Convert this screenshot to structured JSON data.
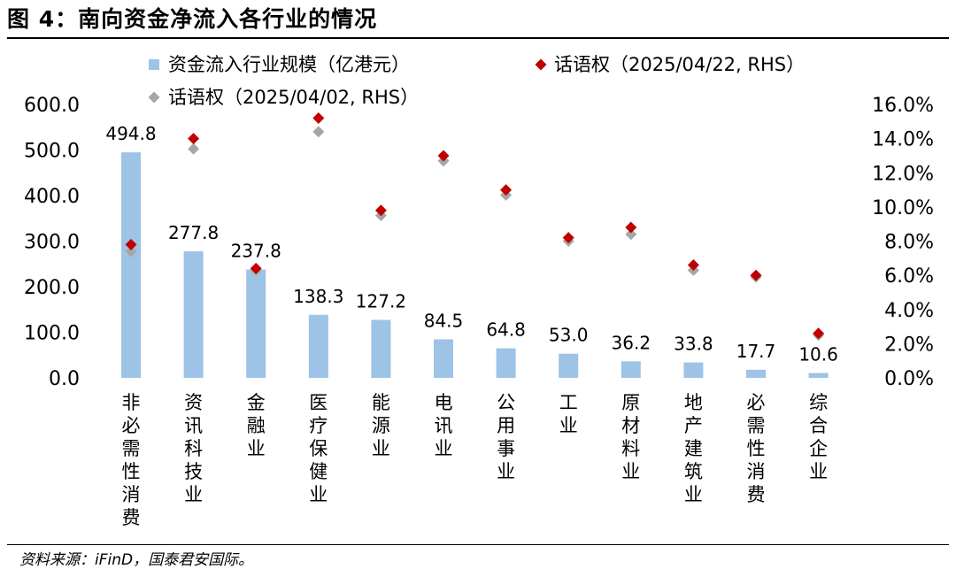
{
  "title": "图 4：南向资金净流入各行业的情况",
  "source": "资料来源：iFinD，国泰君安国际。",
  "chart_data": {
    "type": "bar",
    "categories": [
      "非必需性消费",
      "资讯科技",
      "金融",
      "医疗保健",
      "能源",
      "电讯",
      "公用事业",
      "工业",
      "原材料业",
      "地产建筑业",
      "必需性消费",
      "综合企业"
    ],
    "category_labels": [
      "非必需性消费",
      "资讯科技业",
      "金融业",
      "医疗保健业",
      "能源业",
      "电讯业",
      "公用事业",
      "工业",
      "原材料业",
      "地产建筑业",
      "必需性消费",
      "综合企业"
    ],
    "series": [
      {
        "name": "资金流入行业规模（亿港元）",
        "type": "bar",
        "axis": "left",
        "color": "#9DC3E6",
        "values": [
          494.8,
          277.8,
          237.8,
          138.3,
          127.2,
          84.5,
          64.8,
          53.0,
          36.2,
          33.8,
          17.7,
          10.6
        ],
        "labels": [
          "494.8",
          "277.8",
          "237.8",
          "138.3",
          "127.2",
          "84.5",
          "64.8",
          "53.0",
          "36.2",
          "33.8",
          "17.7",
          "10.6"
        ]
      },
      {
        "name": "话语权（2025/04/22, RHS）",
        "type": "scatter",
        "axis": "right",
        "color": "#C00000",
        "values": [
          7.8,
          14.0,
          6.4,
          15.2,
          9.8,
          13.0,
          11.0,
          8.2,
          8.8,
          6.6,
          6.0,
          2.6
        ]
      },
      {
        "name": "话语权（2025/04/02, RHS）",
        "type": "scatter",
        "axis": "right",
        "color": "#A6A6A6",
        "values": [
          7.4,
          13.4,
          6.3,
          14.4,
          9.5,
          12.7,
          10.7,
          8.0,
          8.4,
          6.3,
          5.9,
          2.5
        ]
      }
    ],
    "y_left": {
      "lim": [
        0,
        600
      ],
      "ticks": [
        "0.0",
        "100.0",
        "200.0",
        "300.0",
        "400.0",
        "500.0",
        "600.0"
      ]
    },
    "y_right": {
      "lim": [
        0,
        16
      ],
      "ticks": [
        "0.0%",
        "2.0%",
        "4.0%",
        "6.0%",
        "8.0%",
        "10.0%",
        "12.0%",
        "14.0%",
        "16.0%"
      ]
    },
    "grid": false,
    "legend_position": "top"
  }
}
